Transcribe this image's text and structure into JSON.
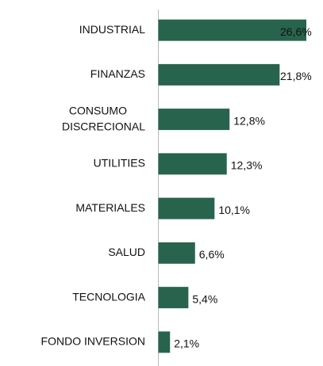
{
  "chart_data": {
    "type": "bar",
    "orientation": "horizontal",
    "categories": [
      "INDUSTRIAL",
      "FINANZAS",
      "CONSUMO DISCRECIONAL",
      "UTILITIES",
      "MATERIALES",
      "SALUD",
      "TECNOLOGIA",
      "FONDO INVERSION"
    ],
    "values": [
      26.6,
      21.8,
      12.8,
      12.3,
      10.1,
      6.6,
      5.4,
      2.1
    ],
    "value_labels": [
      "26,6%",
      "21,8%",
      "12,8%",
      "12,3%",
      "10,1%",
      "6,6%",
      "5,4%",
      "2,1%"
    ],
    "color": "#28634d"
  }
}
